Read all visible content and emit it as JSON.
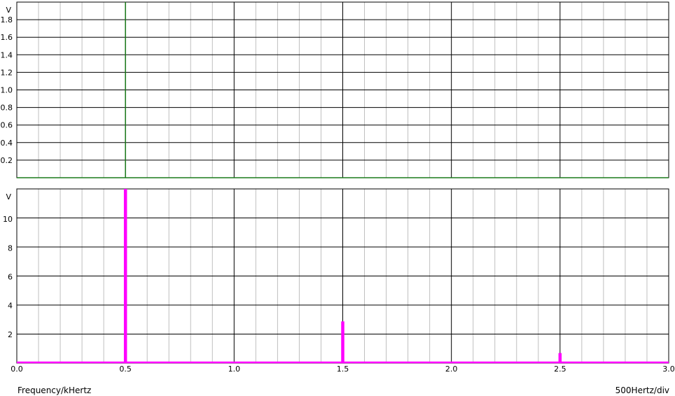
{
  "chart_data": [
    {
      "type": "line",
      "panel": "top",
      "ylabel": "V",
      "ylim": [
        0,
        2.0
      ],
      "xlim": [
        0,
        3.0
      ],
      "y_ticks": [
        "0.2",
        "0.4",
        "0.6",
        "0.8",
        "1.0",
        "1.2",
        "1.4",
        "1.6",
        "1.8"
      ],
      "y_tick_values": [
        0.2,
        0.4,
        0.6,
        0.8,
        1.0,
        1.2,
        1.4,
        1.6,
        1.8
      ],
      "series": [
        {
          "color": "#1a7a1a",
          "x": [
            0.0,
            0.5,
            0.5,
            0.5,
            3.0
          ],
          "y": [
            0.0,
            0.0,
            2.0,
            0.0,
            0.0
          ]
        }
      ],
      "grid": true
    },
    {
      "type": "line",
      "panel": "bottom",
      "ylabel": "V",
      "ylim": [
        0,
        12.1
      ],
      "xlim": [
        0,
        3.0
      ],
      "y_ticks": [
        "2",
        "4",
        "6",
        "8",
        "10"
      ],
      "y_tick_values": [
        2,
        4,
        6,
        8,
        10
      ],
      "series": [
        {
          "color": "#ff00ff",
          "x": [
            0.5,
            1.5,
            2.5
          ],
          "y": [
            12.1,
            2.9,
            0.7
          ]
        }
      ],
      "x_ticks": [
        "0.0",
        "0.5",
        "1.0",
        "1.5",
        "2.0",
        "2.5",
        "3.0"
      ],
      "x_tick_values": [
        0.0,
        0.5,
        1.0,
        1.5,
        2.0,
        2.5,
        3.0
      ],
      "grid": true
    }
  ],
  "footer": {
    "x_axis_label": "Frequency/kHertz",
    "scale_label": "500Hertz/div"
  }
}
